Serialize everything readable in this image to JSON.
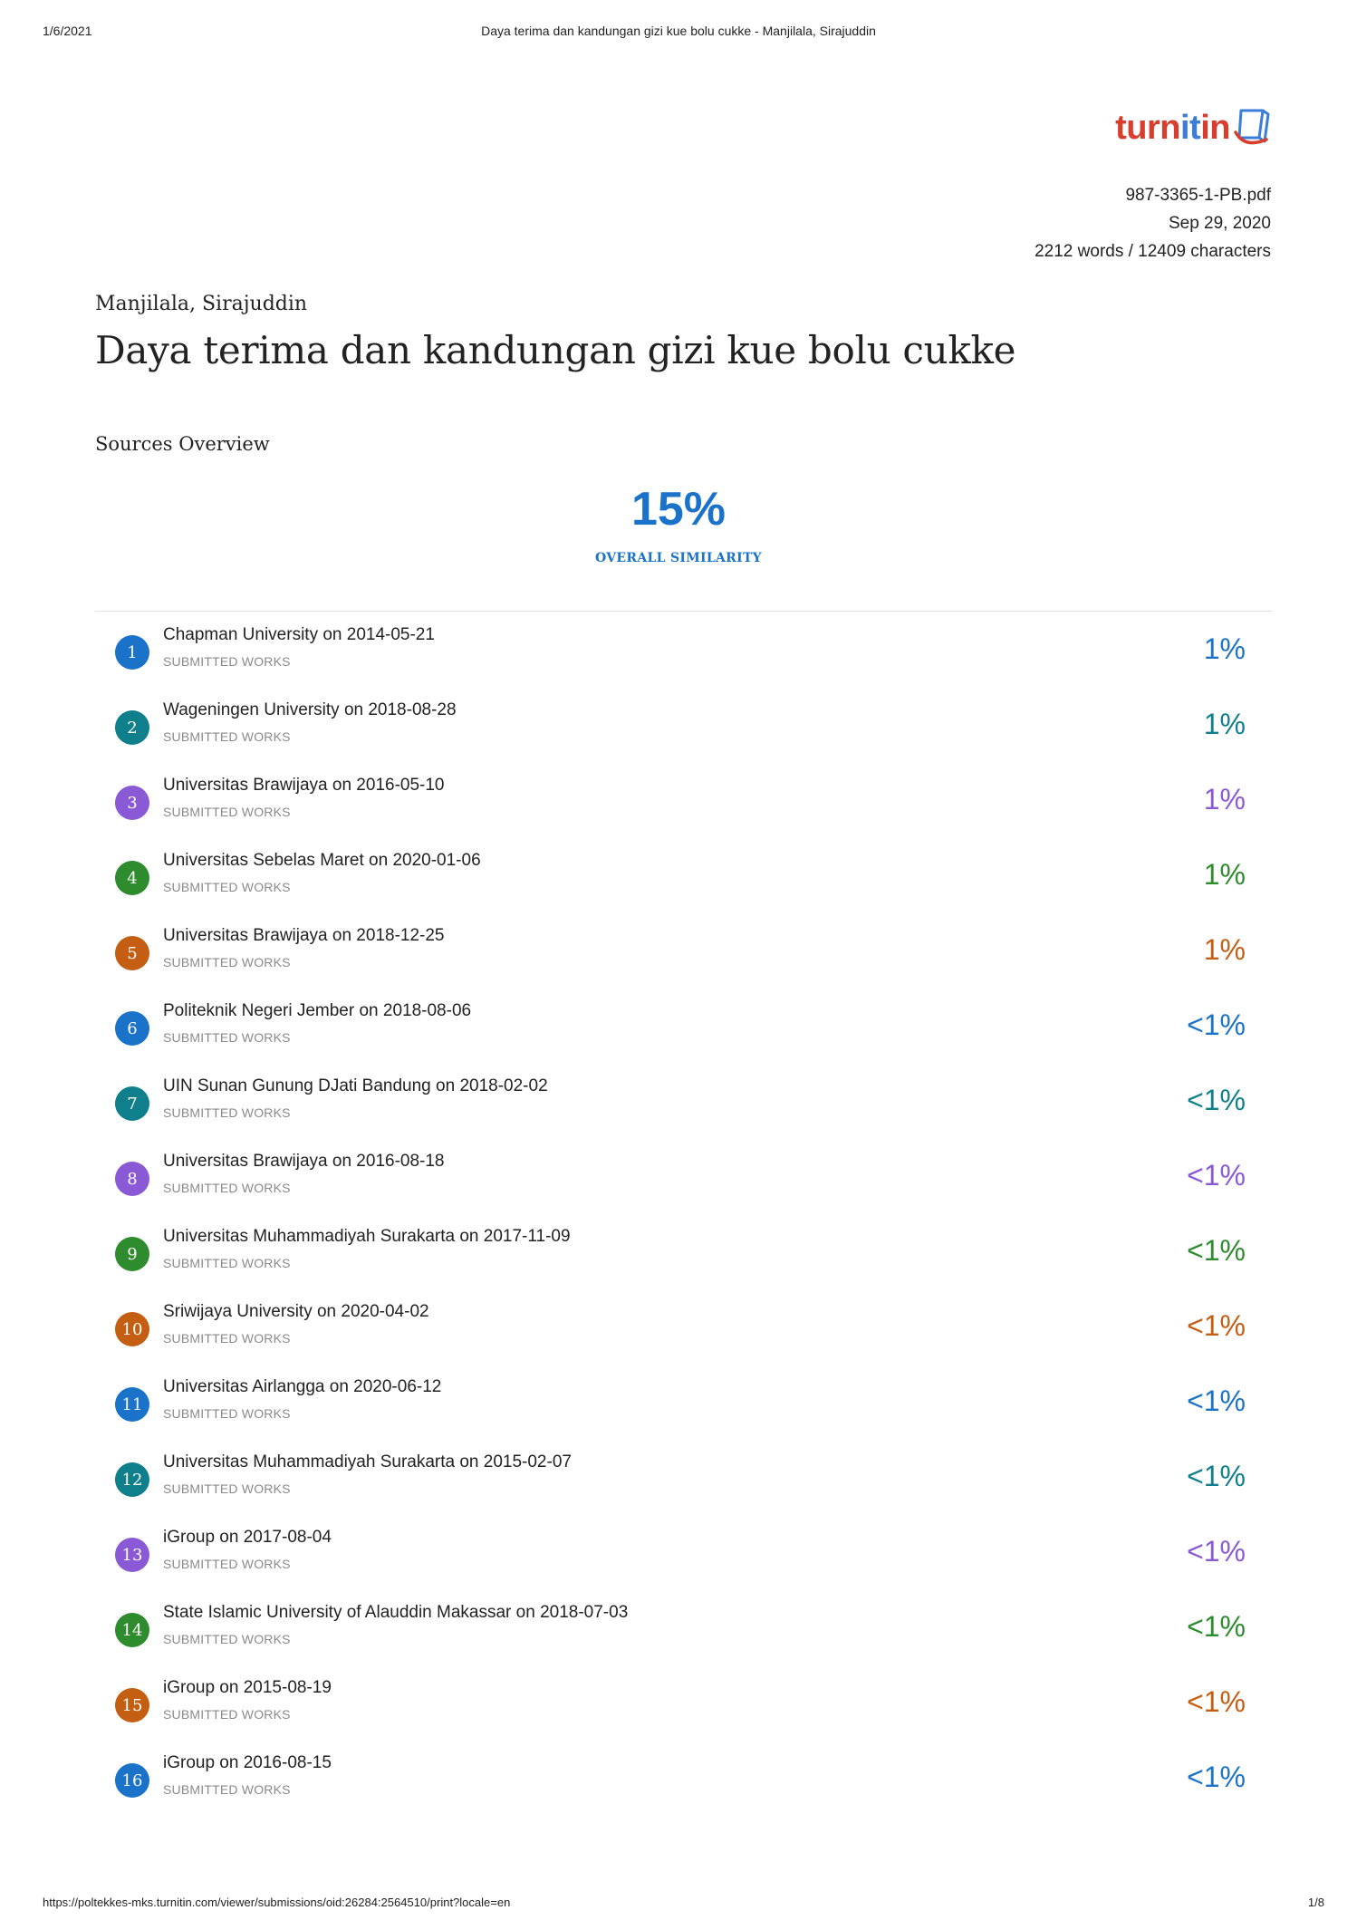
{
  "print_header": {
    "date": "1/6/2021",
    "title": "Daya terima dan kandungan gizi kue bolu cukke - Manjilala, Sirajuddin"
  },
  "logo": {
    "text_a": "turn",
    "text_b": "it",
    "text_c": "in"
  },
  "meta": {
    "filename": "987-3365-1-PB.pdf",
    "date": "Sep 29, 2020",
    "counts": "2212 words / 12409 characters"
  },
  "author": "Manjilala, Sirajuddin",
  "title": "Daya terima dan kandungan gizi kue bolu cukke",
  "sources_overview": {
    "heading": "Sources Overview",
    "overall_value": "15%",
    "overall_label": "OVERALL SIMILARITY"
  },
  "colors": {
    "blue": "#1a73c8",
    "teal": "#0f7f8c",
    "purple": "#8a5ad6",
    "green": "#2e8b2e",
    "orange": "#c45e12"
  },
  "sources": [
    {
      "num": "1",
      "name": "Chapman University on 2014-05-21",
      "type": "SUBMITTED WORKS",
      "pct": "1%",
      "color": "#1a73c8"
    },
    {
      "num": "2",
      "name": "Wageningen University on 2018-08-28",
      "type": "SUBMITTED WORKS",
      "pct": "1%",
      "color": "#0f7f8c"
    },
    {
      "num": "3",
      "name": "Universitas Brawijaya on 2016-05-10",
      "type": "SUBMITTED WORKS",
      "pct": "1%",
      "color": "#8a5ad6"
    },
    {
      "num": "4",
      "name": "Universitas Sebelas Maret on 2020-01-06",
      "type": "SUBMITTED WORKS",
      "pct": "1%",
      "color": "#2e8b2e"
    },
    {
      "num": "5",
      "name": "Universitas Brawijaya on 2018-12-25",
      "type": "SUBMITTED WORKS",
      "pct": "1%",
      "color": "#c45e12"
    },
    {
      "num": "6",
      "name": "Politeknik Negeri Jember on 2018-08-06",
      "type": "SUBMITTED WORKS",
      "pct": "<1%",
      "color": "#1a73c8"
    },
    {
      "num": "7",
      "name": "UIN Sunan Gunung DJati Bandung on 2018-02-02",
      "type": "SUBMITTED WORKS",
      "pct": "<1%",
      "color": "#0f7f8c"
    },
    {
      "num": "8",
      "name": "Universitas Brawijaya on 2016-08-18",
      "type": "SUBMITTED WORKS",
      "pct": "<1%",
      "color": "#8a5ad6"
    },
    {
      "num": "9",
      "name": "Universitas Muhammadiyah Surakarta on 2017-11-09",
      "type": "SUBMITTED WORKS",
      "pct": "<1%",
      "color": "#2e8b2e"
    },
    {
      "num": "10",
      "name": "Sriwijaya University on 2020-04-02",
      "type": "SUBMITTED WORKS",
      "pct": "<1%",
      "color": "#c45e12"
    },
    {
      "num": "11",
      "name": "Universitas Airlangga on 2020-06-12",
      "type": "SUBMITTED WORKS",
      "pct": "<1%",
      "color": "#1a73c8"
    },
    {
      "num": "12",
      "name": "Universitas Muhammadiyah Surakarta on 2015-02-07",
      "type": "SUBMITTED WORKS",
      "pct": "<1%",
      "color": "#0f7f8c"
    },
    {
      "num": "13",
      "name": "iGroup on 2017-08-04",
      "type": "SUBMITTED WORKS",
      "pct": "<1%",
      "color": "#8a5ad6"
    },
    {
      "num": "14",
      "name": "State Islamic University of Alauddin Makassar on 2018-07-03",
      "type": "SUBMITTED WORKS",
      "pct": "<1%",
      "color": "#2e8b2e"
    },
    {
      "num": "15",
      "name": "iGroup on 2015-08-19",
      "type": "SUBMITTED WORKS",
      "pct": "<1%",
      "color": "#c45e12"
    },
    {
      "num": "16",
      "name": "iGroup on 2016-08-15",
      "type": "SUBMITTED WORKS",
      "pct": "<1%",
      "color": "#1a73c8"
    }
  ],
  "print_footer": {
    "url": "https://poltekkes-mks.turnitin.com/viewer/submissions/oid:26284:2564510/print?locale=en",
    "page": "1/8"
  }
}
